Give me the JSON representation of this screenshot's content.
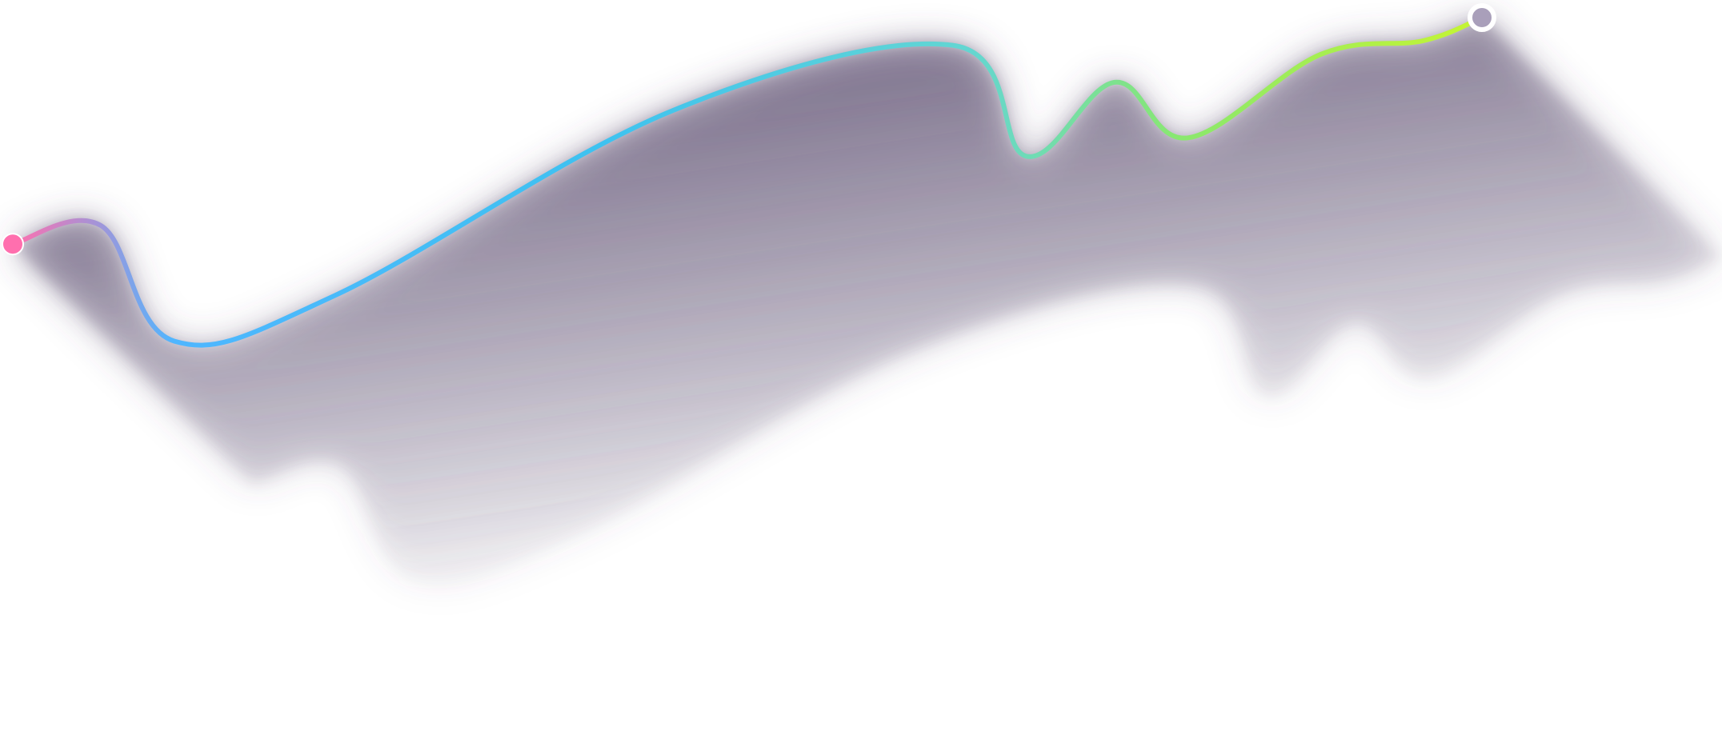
{
  "chart_data": {
    "type": "line",
    "title": "",
    "xlabel": "",
    "ylabel": "",
    "grid": false,
    "legend": "none",
    "style": "gradient line with diagonal extruded shadow",
    "colors": {
      "gradient_start": "#ff6fae",
      "gradient_mid1": "#4fb6ff",
      "gradient_mid2": "#3ec2f0",
      "gradient_mid3": "#63d6d2",
      "gradient_mid4": "#8be86c",
      "gradient_end": "#c6f532",
      "shadow": "#5a4c6e",
      "end_marker": "#a99fba"
    },
    "xlim": [
      0,
      100
    ],
    "ylim": [
      0,
      100
    ],
    "series": [
      {
        "x": [
          0,
          6,
          11,
          22,
          45,
          64,
          69,
          75,
          80,
          89,
          96,
          100
        ],
        "y": [
          51,
          55,
          30,
          40,
          80,
          94,
          70,
          86,
          74,
          92,
          95,
          100
        ]
      }
    ]
  }
}
